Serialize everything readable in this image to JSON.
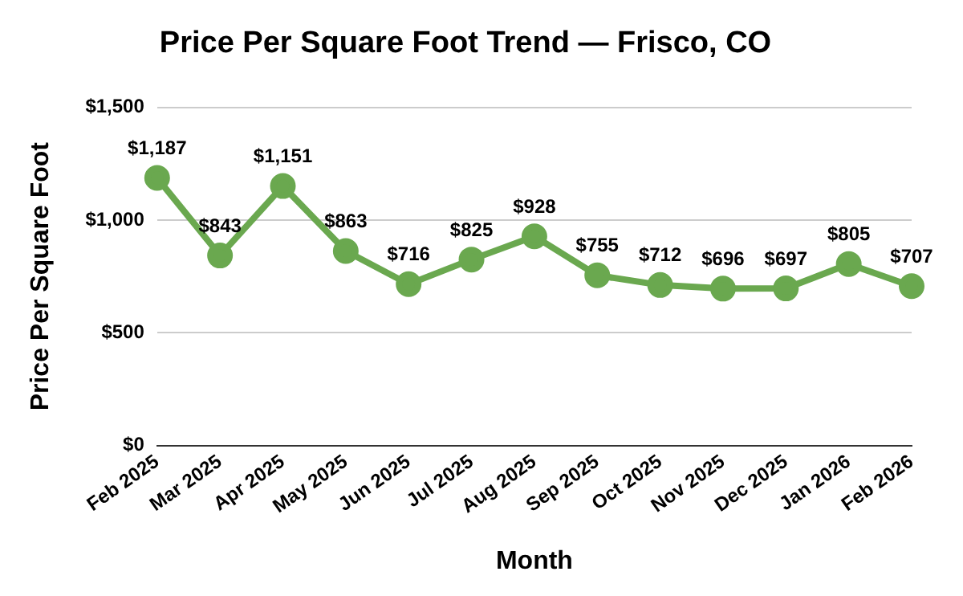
{
  "chart_data": {
    "type": "line",
    "title": "Price Per Square Foot Trend — Frisco, CO",
    "xlabel": "Month",
    "ylabel": "Price Per Square Foot",
    "categories": [
      "Feb 2025",
      "Mar 2025",
      "Apr 2025",
      "May 2025",
      "Jun 2025",
      "Jul 2025",
      "Aug 2025",
      "Sep 2025",
      "Oct 2025",
      "Nov 2025",
      "Dec 2025",
      "Jan 2026",
      "Feb 2026"
    ],
    "series": [
      {
        "color": "#6aa84f",
        "values": [
          1187,
          843,
          1151,
          863,
          716,
          825,
          928,
          755,
          712,
          696,
          697,
          805,
          707
        ],
        "value_labels": [
          "$1,187",
          "$843",
          "$1,151",
          "$863",
          "$716",
          "$825",
          "$928",
          "$755",
          "$712",
          "$696",
          "$697",
          "$805",
          "$707"
        ]
      }
    ],
    "ylim": [
      0,
      1500
    ],
    "yticks": [
      {
        "value": 0,
        "label": "$0"
      },
      {
        "value": 500,
        "label": "$500"
      },
      {
        "value": 1000,
        "label": "$1,000"
      },
      {
        "value": 1500,
        "label": "$1,500"
      }
    ],
    "grid": "y",
    "legend": false,
    "marker": "circle",
    "line_style": "solid"
  }
}
